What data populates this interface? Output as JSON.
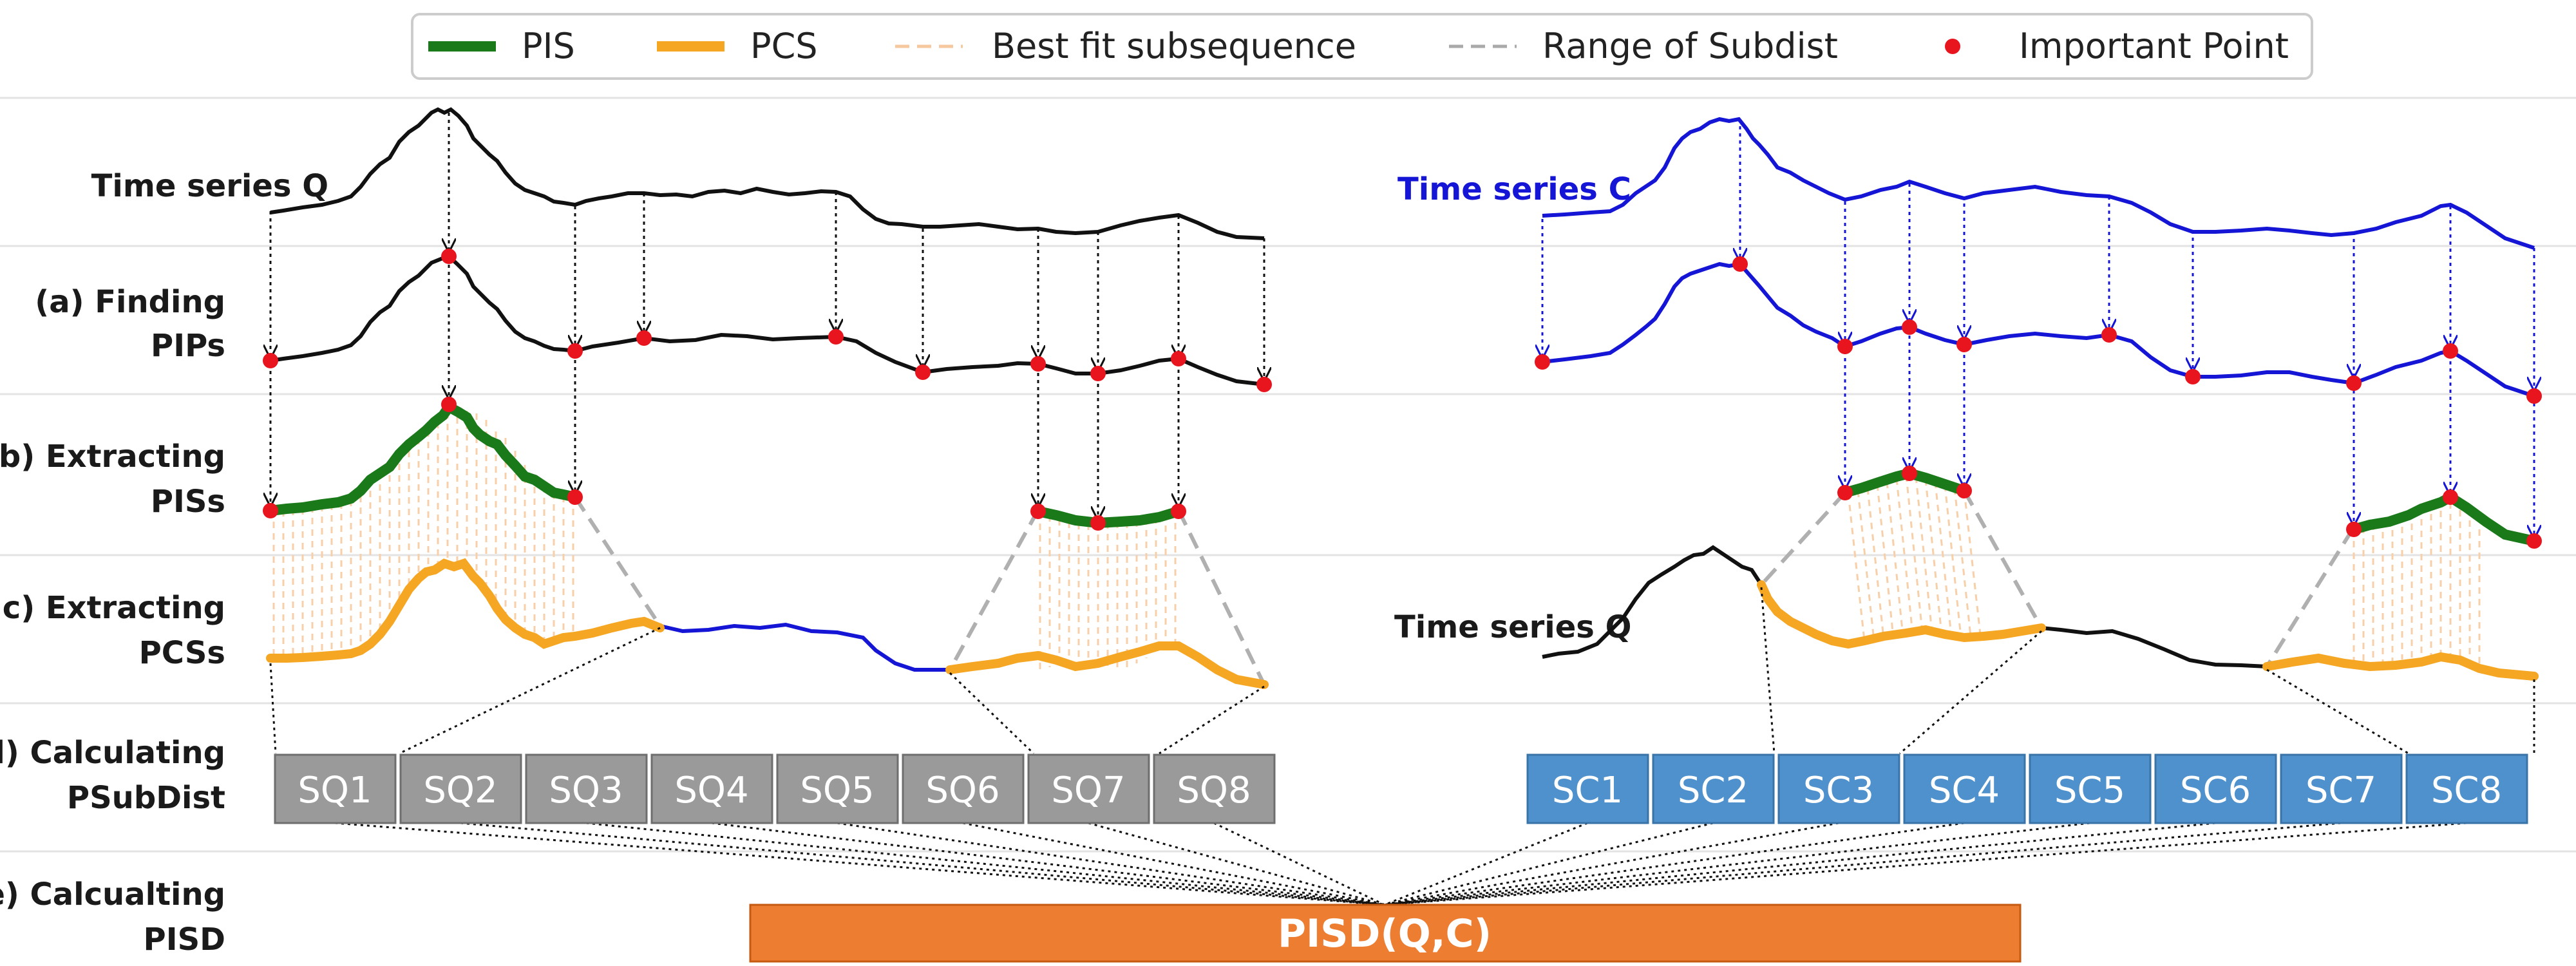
{
  "legend": {
    "items": [
      {
        "label": "PIS",
        "color": "#1a7a1a",
        "style": "thick"
      },
      {
        "label": "PCS",
        "color": "#f5a623",
        "style": "thick"
      },
      {
        "label": "Best fit subsequence",
        "color": "#f5c8a0",
        "style": "dashed-light"
      },
      {
        "label": "Range of Subdist",
        "color": "#a9a9a9",
        "style": "dashed"
      },
      {
        "label": "Important Point",
        "color": "#e8141e",
        "style": "dot"
      }
    ]
  },
  "steps": {
    "a_line1": "(a) Finding",
    "a_line2": "PIPs",
    "b_line1": "(b) Extracting",
    "b_line2": "PISs",
    "c_line1": "(c) Extracting",
    "c_line2": "PCSs",
    "d_line1": "(d) Calculating",
    "d_line2": "PSubDist",
    "e_line1": "(e) Calcualting",
    "e_line2": "PISD"
  },
  "series": {
    "q_label": "Time series Q",
    "c_label": "Time series C",
    "q_label_right": "Time series Q"
  },
  "boxes_q": [
    "SQ1",
    "SQ2",
    "SQ3",
    "SQ4",
    "SQ5",
    "SQ6",
    "SQ7",
    "SQ8"
  ],
  "boxes_c": [
    "SC1",
    "SC2",
    "SC3",
    "SC4",
    "SC5",
    "SC6",
    "SC7",
    "SC8"
  ],
  "result": "PISD(Q,C)",
  "colors": {
    "pis": "#1a7a1a",
    "pcs": "#f5a623",
    "point": "#e8141e",
    "series_q": "#111111",
    "series_c": "#1515d6",
    "box_q": "#9a9a9a",
    "box_c": "#4f91cd",
    "result_box": "#ed7d31"
  }
}
